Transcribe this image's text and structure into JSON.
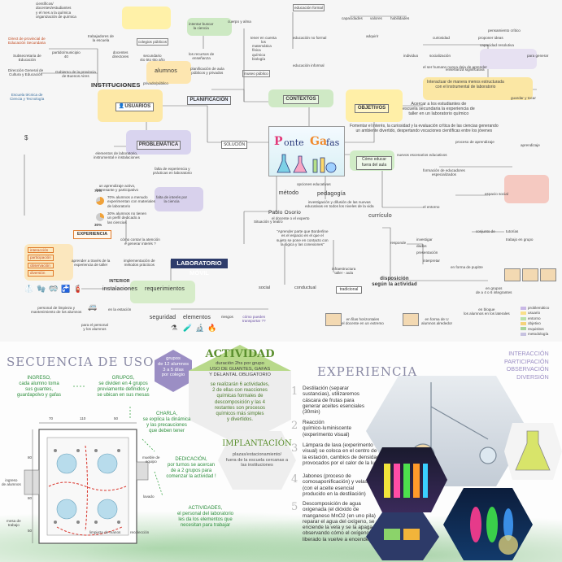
{
  "top": {
    "central_title_1": "P",
    "central_title_2": "onte",
    "central_title_3": "Ga",
    "central_title_4": "fas",
    "main_labels": {
      "instituciones": "INSTITUCIONES",
      "usuarios": "USUARIOS",
      "problematica": "PROBLEMÁTICA",
      "solucion": "SOLUCIÓN",
      "planificacion": "PLANIFICACIÓN",
      "contextos": "CONTEXTOS",
      "objetivos": "OBJETIVOS",
      "experiencia": "EXPERIENCIA",
      "laboratorio": "LABORATORIO MÓVIL",
      "metodo": "método",
      "pedagogia": "pedagogía",
      "curriculo": "currículo",
      "disposicion": "disposición\nsegún la actividad",
      "instalaciones": "instalaciones",
      "requerimientos": "requerimientos",
      "seguridad": "seguridad",
      "elementos": "elementos",
      "alumnos": "alumnos",
      "pablo": "Pablo Osorio",
      "fuera_aula": "Cómo educar\nfuera del aula",
      "interior": "INTERIOR"
    },
    "notes": {
      "n1": "científicos/\ndocentes/estudiantes\ny el mes a la química\norganización de química",
      "n2": "Direct de provincial de\nEducación Secundaria",
      "n3": "Subsecretaria de\nEducación",
      "n4": "Dirección General de\nCultura y Educación",
      "n5": "Escuela técnica de\nCiencia y Tecnología",
      "n6": "partido/municipio\n40",
      "n7": "trabajadores de\nla escuela",
      "n8": "docentes\ndirectores",
      "n9": "Gobierno de la provincia\nde Buenos Aires",
      "n10": "colegios públicos",
      "n11": "secundario\n4to 5to 6to año",
      "n12": "privado/público",
      "n13": "los recursos de\nenseñanza",
      "n14": "planificación de aula\npúblicos y privados",
      "n15": "elementos de laboratorio,\ninstrumental e instalaciones",
      "n16": "falta de experiencia y\nprácticas en laboratorio",
      "n17": "un aprendizaje activo,\ninteresante y participativo",
      "n18": "falta de interés por\nla ciencia",
      "n19": "cómo contar la atención\ne generar interés ?",
      "n20": "aprender a través de la\nexperiencia de taller",
      "n21": "implementación de\nmétodos prácticos",
      "n22": "Acercar a los estudiantes de\nescuela secundaria la experiencia de\ntaller en un laboratorio químico",
      "n23": "Fomentar el interés, la curiosidad y la evaluación crítica de las ciencias generando\nun ambiente divertido, despertando vocaciones científicas entre los jóvenes",
      "n24": "Interactuar de manera menos estructurada\ncon el instrumental de laboratorio",
      "n25": "enseñanza significativa",
      "n26": "formación de educadores\nespecializados",
      "n27": "nuevos escenarios educativos",
      "n28": "proceso de aprendizaje",
      "n29": "opciones educativas",
      "n30": "investigación y difusión de las nuevas\neducativas en todos los niveles de la vida",
      "n31": "\"Aprender parte que Borderline\nes el espacio en el que el\nsujeto se pone en contacto con\nla lógica y las conexiones\"",
      "n32": "infraestructura\ntaller - aula",
      "n33": "social",
      "n34": "conductual",
      "n35": "tradicional",
      "n36": "en filas horizontales\nel docente en un extremo",
      "n37": "en forma de U\nalumnos alrededor",
      "n38": "en grupos\nde a 4 o 6 integrantes",
      "n39": "en bloque\nlos alumnos en los laterales",
      "n40": "personal de limpieza y\nmantenimiento de los alumnos",
      "n41": "para el personal\ny los alumnos",
      "n42": "en la estación",
      "n43": "riesgos",
      "n44": "cómo pueden\ntransportar ??",
      "n45": "educación formal",
      "n46": "educación no formal",
      "n47": "educación informal",
      "n48": "matemática\nfísica\nquímica\nbiología",
      "n49": "museo público",
      "n50": "tener en cuenta\nlos",
      "n51": "cuerpo y alma",
      "n52": "intentar buscar\nla ciencia",
      "n53": "capacidades",
      "n54": "valores",
      "n55": "adquirir",
      "n56": "habilidades",
      "n57": "curiosidad",
      "n58": "individuo",
      "n59": "socialización",
      "n60": "el ser humano nunca deja de aprender",
      "n61": "pensamiento crítico",
      "n62": "proponer ideas",
      "n63": "capacidad resolutiva",
      "n64": "espacio social",
      "n65": "el entorno",
      "n66": "conjunto de",
      "n67": "tutorías",
      "n68": "trabajo en grupo",
      "n69": "en forma de pupitre",
      "n70": "investigar",
      "n71": "presentación",
      "n72": "dados",
      "n73": "guardar y tocar",
      "n74": "para generar",
      "n75": "aprendizaje",
      "n76": "responde",
      "n77": "interpretar",
      "n78": "Situación y teatro",
      "n79": "el docente o el experto"
    },
    "legend": [
      "problemático",
      "usuario",
      "entorno",
      "objetivo",
      "requisitos",
      "metodología"
    ],
    "experiencia_items": [
      "interacción",
      "participación",
      "observación",
      "diversión"
    ],
    "pct1": "70%",
    "pct2": "30%",
    "pct_note1": "70% alumnos a menudo\nexperimentan con materiales\nde laboratorio",
    "pct_note2": "30% alumnos no tienen\nun perfil dedicado a\nlas ciencias"
  },
  "bottom": {
    "secuencia_title": "SECUENCIA DE USO",
    "grupos_badge": "grupos\nde 12 alumnos\n3 a 5 días\npor colegio",
    "actividad_title": "ACTIVIDAD",
    "actividad_sub": "duración 2hs por grupo\nUSO DE GUANTES, GAFAS\nY DELANTAL OBLIGATORIO",
    "actividad_body": "se realizarán 6 actividades,\n2 de ellas con reacciones\nquímicas formales de\ndescomposición y las 4\nrestantes son procesos\nquímicos más simples\ny divertidos.",
    "implantacion_title": "IMPLANTACIÓN",
    "implantacion_body": "plazas/estacionamiento/\nfuera de la escuela cercanas a\nlas instituciones",
    "ingreso": "INGRESO,\ncada alumno toma\nsus guantes,\nguardapolvo y gafas",
    "grupos": "GRUPOS,\nse dividen en 4 grupos\npreviamente definidos y\nse ubican en sus mesas",
    "charla": "CHARLA,\nse explica la dinámica\ny las precauciones\nque deben tener",
    "dedicacion": "DEDICACIÓN,\npor turnos se acercan\nde a 2 grupos para\ncomenzar la actividad !",
    "actividades": "ACTIVIDADES,\nel personal del laboratorio\nles da los elementos que\nnecesitan para trabajar",
    "experiencia_title": "EXPERIENCIA",
    "exp_tags": [
      "INTERACCIÓN",
      "PARTICIPACIÓN",
      "OBSERVACIÓN",
      "DIVERSIÓN"
    ],
    "activities": [
      "Destilación (separar\nsustancias), utilizaremos\ncáscara de frutas para\ngenerar aceites esenciales\n(30min)",
      "Reacción\nquímico-luminiscente\n(experimento visual)",
      "Lámpara de lava (experimento\nvisual) se coloca en el centro de\nla estación, cambios de densidad\nprovocados por el calor de la luz",
      "Jabones (proceso de\ncomosaponificación) y velas\n(con el aceite esencial\nproducido en la destilación)",
      "Descomposición de agua\noxigenada (el dióxido de\nmanganeso MnO2 (en uno pila)\nreparar el agua del oxígeno, se\nenciende la vela y se la apaga,\nobservando cómo el oxígeno\nliberado la vuelve a encender)"
    ],
    "numbers": [
      "1",
      "2",
      "3",
      "4",
      "5"
    ],
    "dims": [
      "70",
      "110",
      "50",
      "80",
      "80",
      "50"
    ],
    "plan_labels": [
      "ingreso\nde alumnos",
      "mesa de\ntrabajo",
      "mueble de\nequipo",
      "limpieza de manos",
      "lavado",
      "recolección"
    ]
  },
  "colors": {
    "orange": "#e07a2a",
    "green": "#3aa547",
    "purple": "#9b8ec4",
    "navy": "#2e3c6b",
    "yellow": "#f3e07a"
  }
}
